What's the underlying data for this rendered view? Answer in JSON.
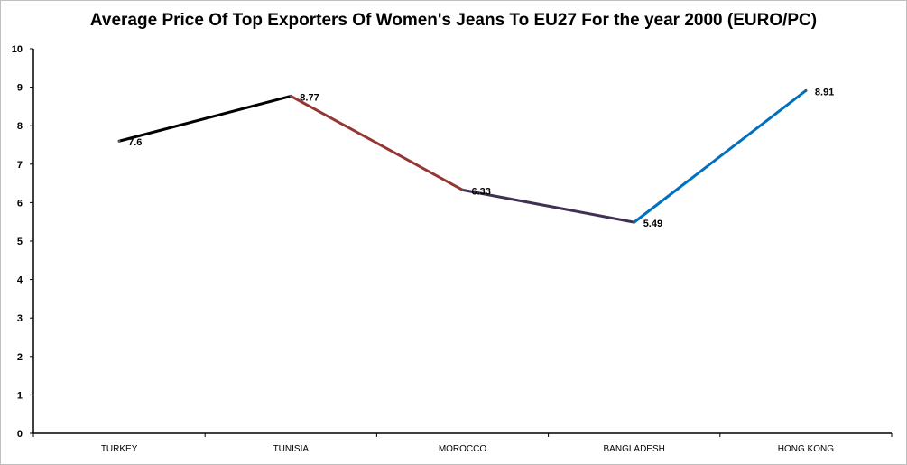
{
  "chart_data": {
    "type": "line",
    "title": "Average Price Of Top Exporters Of Women's Jeans To EU27 For the year 2000 (EURO/PC)",
    "xlabel": "",
    "ylabel": "",
    "categories": [
      "TURKEY",
      "TUNISIA",
      "MOROCCO",
      "BANGLADESH",
      "HONG KONG"
    ],
    "values": [
      7.6,
      8.77,
      6.33,
      5.49,
      8.91
    ],
    "data_labels": [
      "7.6",
      "8.77",
      "6.33",
      "5.49",
      "8.91"
    ],
    "ylim": [
      0,
      10
    ],
    "yticks": [
      0,
      1,
      2,
      3,
      4,
      5,
      6,
      7,
      8,
      9,
      10
    ],
    "segment_colors": [
      "#000000",
      "#943634",
      "#403152",
      "#0070c0"
    ],
    "grid": false,
    "legend": "none"
  }
}
